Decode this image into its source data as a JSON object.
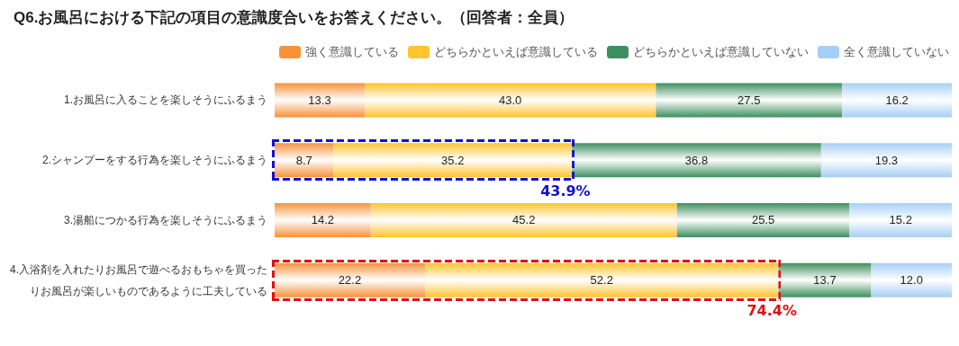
{
  "chart_data": {
    "type": "bar",
    "orientation": "horizontal",
    "stacked": true,
    "title": "Q6.お風呂における下記の項目の意識度合いをお答えください。（回答者：全員）",
    "categories": [
      "1.お風呂に入ることを楽しそうにふるまう",
      "2.シャンプーをする行為を楽しそうにふるまう",
      "3.湯船につかる行為を楽しそうにふるまう",
      "4.入浴剤を入れたりお風呂で遊べるおもちゃを買ったりお風呂が楽しいものであるように工夫している"
    ],
    "series": [
      {
        "name": "強く意識している",
        "color": "#f7923a",
        "values": [
          13.3,
          8.7,
          14.2,
          22.2
        ],
        "value_labels": [
          "13.3",
          "8.7",
          "14.2",
          "22.2"
        ]
      },
      {
        "name": "どちらかといえば意識している",
        "color": "#ffc42e",
        "values": [
          43.0,
          35.2,
          45.2,
          52.2
        ],
        "value_labels": [
          "43.0",
          "35.2",
          "45.2",
          "52.2"
        ]
      },
      {
        "name": "どちらかといえば意識していない",
        "color": "#3d8f5f",
        "values": [
          27.5,
          36.8,
          25.5,
          13.7
        ],
        "value_labels": [
          "27.5",
          "36.8",
          "25.5",
          "13.7"
        ]
      },
      {
        "name": "全く意識していない",
        "color": "#a6cff5",
        "values": [
          16.2,
          19.3,
          15.2,
          12.0
        ],
        "value_labels": [
          "16.2",
          "19.3",
          "15.2",
          "12.0"
        ]
      }
    ],
    "xlim": [
      0,
      100
    ],
    "tick_labels": "y",
    "legend": "top",
    "annotations": [
      {
        "text": "43.9%",
        "x": 43.9,
        "y": "2.シャンプーをする行為を楽しそうにふるまう"
      },
      {
        "text": "74.4%",
        "x": 74.4,
        "y": "4.入浴剤を入れたりお風呂で遊べるおもちゃを買ったりお風呂が楽しいものであるように工夫している"
      }
    ]
  }
}
